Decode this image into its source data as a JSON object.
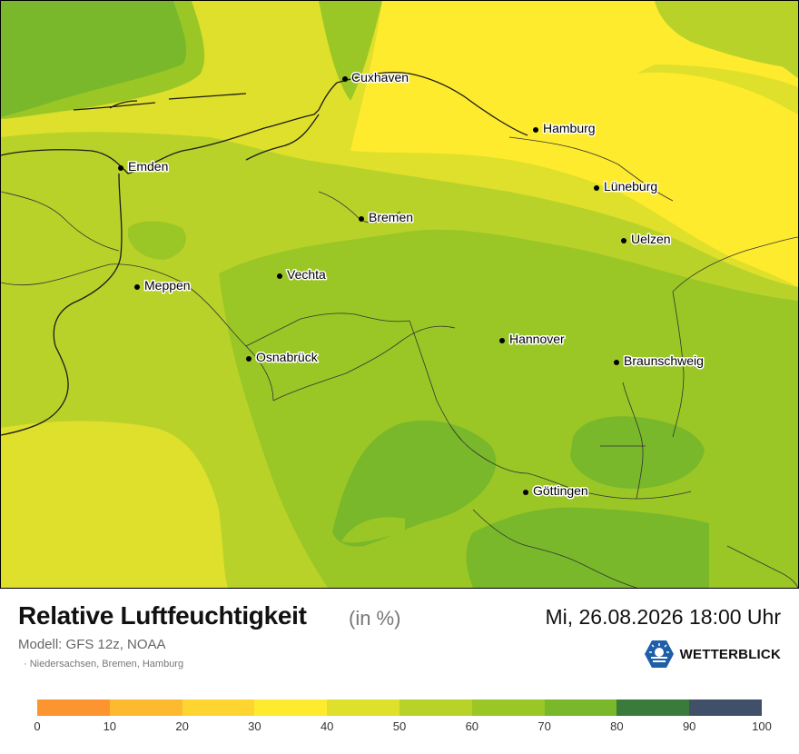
{
  "title": "Relative Luftfeuchtigkeit",
  "unit": "(in %)",
  "model": "Modell: GFS 12z, NOAA",
  "region": "Niedersachsen, Bremen, Hamburg",
  "datetime": "Mi, 26.08.2026 18:00 Uhr",
  "brand": "WETTERBLICK",
  "cities": [
    {
      "name": "Cuxhaven"
    },
    {
      "name": "Hamburg"
    },
    {
      "name": "Emden"
    },
    {
      "name": "Lüneburg"
    },
    {
      "name": "Bremen"
    },
    {
      "name": "Uelzen"
    },
    {
      "name": "Vechta"
    },
    {
      "name": "Meppen"
    },
    {
      "name": "Hannover"
    },
    {
      "name": "Osnabrück"
    },
    {
      "name": "Braunschweig"
    },
    {
      "name": "Göttingen"
    }
  ],
  "legend": {
    "ticks": [
      "0",
      "10",
      "20",
      "30",
      "40",
      "50",
      "60",
      "70",
      "80",
      "90",
      "100"
    ],
    "colors": [
      "#fc9530",
      "#fdba30",
      "#fed530",
      "#feeb2e",
      "#dfe02b",
      "#b9d22a",
      "#9ac725",
      "#78b82a",
      "#3a7a3a",
      "#405068"
    ]
  },
  "colors": {
    "humidity_40_50": "#dfe02b",
    "humidity_30_40": "#feeb2e",
    "humidity_50_60": "#b9d22a",
    "humidity_60_70": "#9ac725",
    "humidity_70_80": "#78b82a"
  }
}
